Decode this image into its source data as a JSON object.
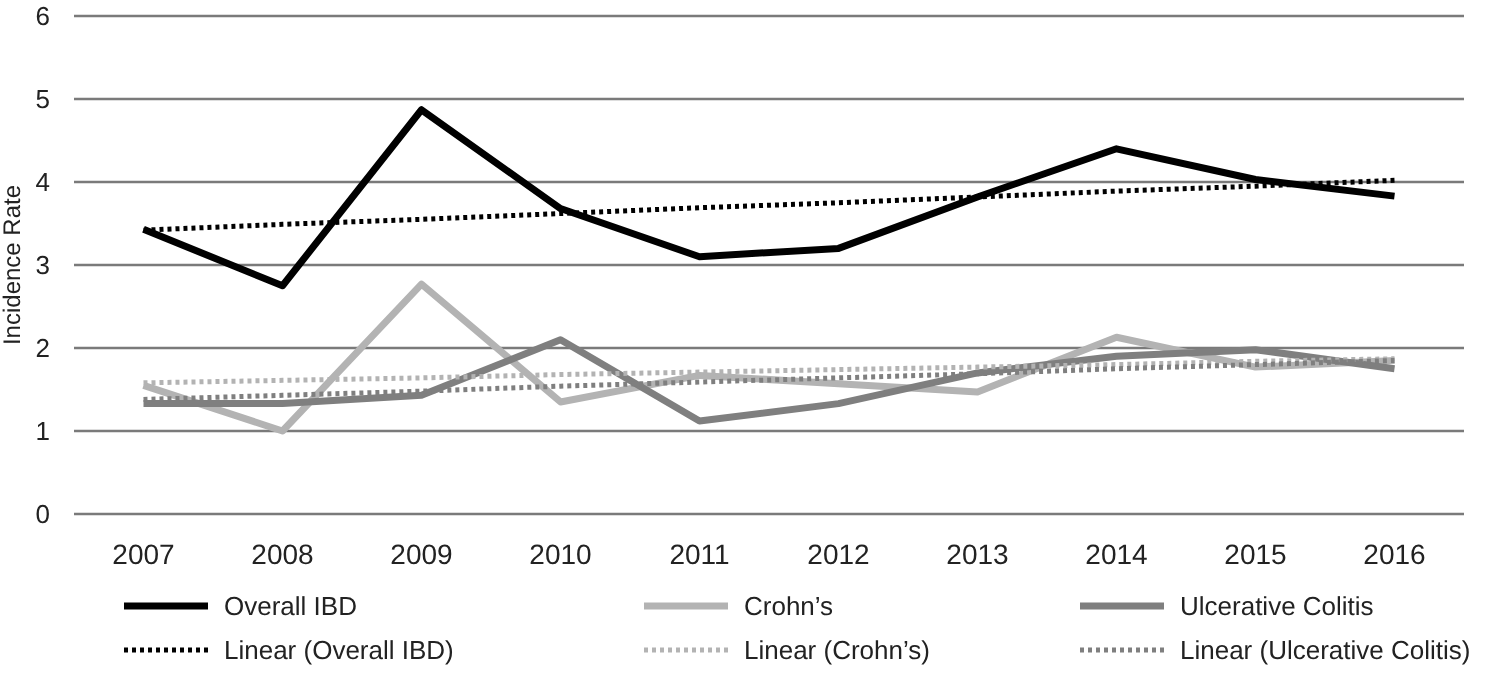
{
  "chart_data": {
    "type": "line",
    "ylabel": "Incidence Rate",
    "categories": [
      "2007",
      "2008",
      "2009",
      "2010",
      "2011",
      "2012",
      "2013",
      "2014",
      "2015",
      "2016"
    ],
    "ylim": [
      0,
      6
    ],
    "yticks": [
      0,
      1,
      2,
      3,
      4,
      5,
      6
    ],
    "grid": "y",
    "legend": "bottom",
    "line_style": "solid",
    "marker": "none",
    "series": [
      {
        "name": "Overall IBD",
        "color": "#000000",
        "values": [
          3.43,
          2.75,
          4.87,
          3.68,
          3.1,
          3.2,
          3.82,
          4.4,
          4.03,
          3.83
        ]
      },
      {
        "name": "Crohn’s",
        "color": "#b3b3b3",
        "values": [
          1.55,
          1.0,
          2.77,
          1.35,
          1.67,
          1.57,
          1.47,
          2.13,
          1.77,
          1.85
        ]
      },
      {
        "name": "Ulcerative Colitis",
        "color": "#7f7f7f",
        "values": [
          1.33,
          1.33,
          1.43,
          2.1,
          1.12,
          1.33,
          1.7,
          1.9,
          1.98,
          1.75
        ]
      },
      {
        "name": "Linear (Overall IBD)",
        "type": "line",
        "line_style": "dotted",
        "color": "#000000",
        "values": [
          3.42,
          3.49,
          3.55,
          3.62,
          3.69,
          3.75,
          3.82,
          3.89,
          3.95,
          4.02
        ]
      },
      {
        "name": "Linear (Crohn’s)",
        "type": "line",
        "line_style": "dotted",
        "color": "#b3b3b3",
        "values": [
          1.58,
          1.61,
          1.64,
          1.68,
          1.71,
          1.74,
          1.77,
          1.8,
          1.84,
          1.87
        ]
      },
      {
        "name": "Linear (Ulcerative Colitis)",
        "type": "line",
        "line_style": "dotted",
        "color": "#7f7f7f",
        "values": [
          1.38,
          1.43,
          1.48,
          1.54,
          1.59,
          1.64,
          1.69,
          1.75,
          1.8,
          1.85
        ]
      }
    ]
  }
}
